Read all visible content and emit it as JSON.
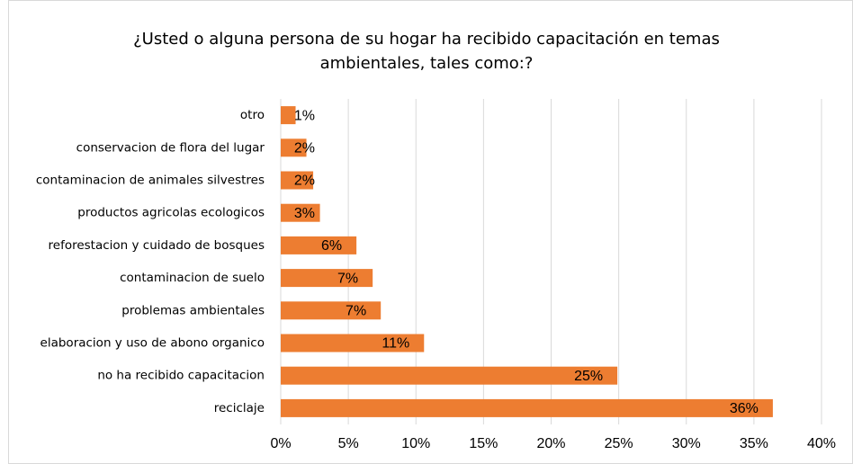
{
  "chart_data": {
    "type": "bar",
    "orientation": "horizontal",
    "title": "¿Usted o alguna persona de su hogar ha recibido capacitación en temas ambientales, tales como:?",
    "categories": [
      "otro",
      "conservacion de flora del lugar",
      "contaminacion de animales silvestres",
      "productos agricolas ecologicos",
      "reforestacion y cuidado de bosques",
      "contaminacion de suelo",
      "problemas ambientales",
      "elaboracion y uso de abono organico",
      "no ha recibido capacitacion",
      "reciclaje"
    ],
    "values": [
      1.1,
      1.9,
      2.4,
      2.9,
      5.6,
      6.8,
      7.4,
      10.6,
      24.9,
      36.4
    ],
    "value_labels": [
      "1%",
      "2%",
      "2%",
      "3%",
      "6%",
      "7%",
      "7%",
      "11%",
      "25%",
      "36%"
    ],
    "color": "#ed7d31",
    "xlim": [
      0,
      40
    ],
    "xticks": [
      {
        "value": 0,
        "label": "0%"
      },
      {
        "value": 5,
        "label": "5%"
      },
      {
        "value": 10,
        "label": "10%"
      },
      {
        "value": 15,
        "label": "15%"
      },
      {
        "value": 20,
        "label": "20%"
      },
      {
        "value": 25,
        "label": "25%"
      },
      {
        "value": 30,
        "label": "30%"
      },
      {
        "value": 35,
        "label": "35%"
      },
      {
        "value": 40,
        "label": "40%"
      }
    ],
    "grid": true
  }
}
